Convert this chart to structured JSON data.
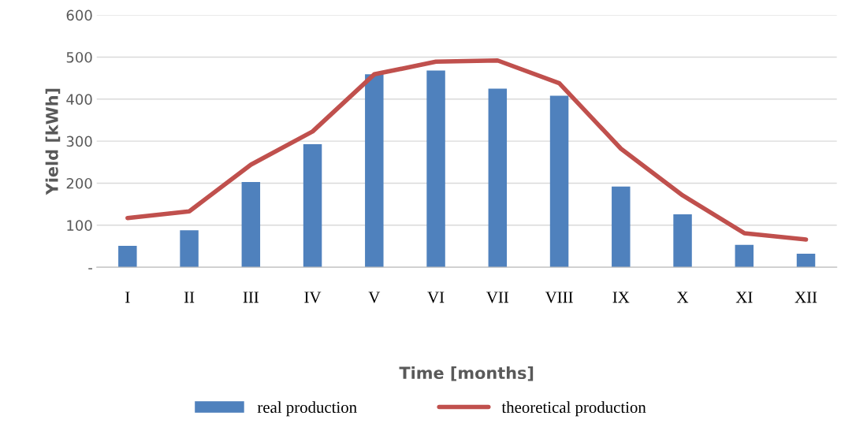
{
  "chart_data": {
    "type": "bar",
    "xlabel": "Time [months]",
    "ylabel": "Yield [kWh]",
    "categories": [
      "I",
      "II",
      "III",
      "IV",
      "V",
      "VI",
      "VII",
      "VIII",
      "IX",
      "X",
      "XI",
      "XII"
    ],
    "series": [
      {
        "name": "real production",
        "color": "#4f81bd",
        "values": [
          51,
          88,
          203,
          293,
          459,
          468,
          425,
          408,
          192,
          126,
          53,
          32
        ]
      },
      {
        "name": "theoretical production",
        "type": "line",
        "color": "#c0504d",
        "values": [
          117,
          133,
          244,
          323,
          459,
          489,
          492,
          438,
          282,
          171,
          81,
          66
        ]
      }
    ],
    "ylim": [
      0,
      600
    ],
    "yticks": [
      {
        "value": 0,
        "label": "-"
      },
      100,
      200,
      300,
      400,
      500,
      600
    ],
    "grid": "y",
    "legend": "bottom",
    "marker": "none",
    "line_style": "solid"
  }
}
